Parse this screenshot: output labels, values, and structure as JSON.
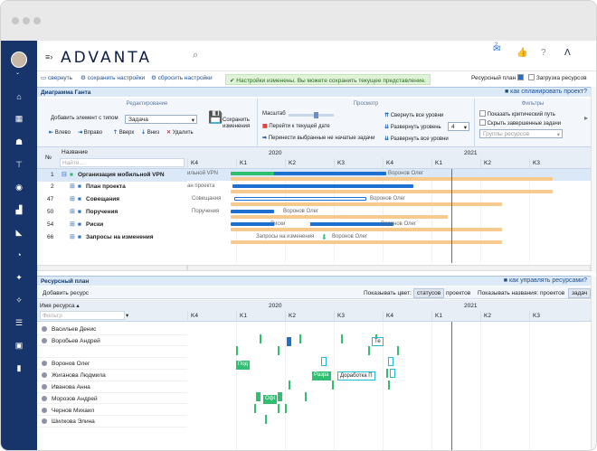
{
  "app": {
    "logo": "ADVANTA",
    "logo_accent": "A",
    "notification_count": "2"
  },
  "actions": {
    "collapse": "свернуть",
    "save_settings": "сохранить настройки",
    "reset_settings": "сбросить настройки",
    "notice": "Настройки изменены. Вы можете сохранить текущее представление.",
    "resource_plan": "Ресурсный план",
    "resource_load": "Загрузка ресурсов"
  },
  "gantt": {
    "title": "Диаграмма Ганта",
    "help_link": "как спланировать проект?",
    "ribbon": {
      "edit_title": "Редактирование",
      "add_label": "Добавить элемент с типом",
      "type_value": "Задача",
      "left": "Влево",
      "right": "Вправо",
      "up": "Вверх",
      "down": "Вниз",
      "delete": "Удалить",
      "save_changes_1": "Сохранить",
      "save_changes_2": "изменения",
      "view_title": "Просмотр",
      "scale": "Масштаб",
      "goto_date": "Перейти к текущей дате",
      "move_unstarted": "Перенести выбранные не начатые задачи",
      "collapse_all": "Свернуть все уровни",
      "expand_level": "Развернуть уровень",
      "level_value": "4",
      "expand_all": "Развернуть все уровни",
      "filters_title": "Фильтры",
      "critical_path": "Показать критический путь",
      "hide_done": "Скрыть завершенные задачи",
      "resource_groups": "Группы ресурсов"
    },
    "col_num": "№",
    "col_name": "Название",
    "name_filter": "Найти...",
    "rows": [
      {
        "num": "1",
        "name": "Организация мобильной VPN",
        "level": "0"
      },
      {
        "num": "2",
        "name": "План проекта",
        "level": "1"
      },
      {
        "num": "47",
        "name": "Совещания",
        "level": "1"
      },
      {
        "num": "50",
        "name": "Поручения",
        "level": "1"
      },
      {
        "num": "54",
        "name": "Риски",
        "level": "1"
      },
      {
        "num": "66",
        "name": "Запросы на изменения",
        "level": "1"
      }
    ],
    "years": [
      "2020",
      "2021"
    ],
    "quarters": [
      "K4",
      "K1",
      "K2",
      "K3",
      "K4",
      "K1",
      "K2",
      "K3"
    ],
    "bar_labels": [
      "ильной VPN",
      "Воронов Олег",
      "ан проекта",
      "Совещания",
      "Воронов Олег",
      "Поручения",
      "Воронов Олег",
      "Риски",
      "Воронов Олег",
      "Запросы на изменения",
      "Воронов Олег"
    ]
  },
  "resources": {
    "title": "Ресурсный план",
    "help_link": "как управлять ресурсами?",
    "add": "Добавить ресурс",
    "show_color": "Показывать цвет:",
    "by_status": "статусов",
    "by_project": "проектов",
    "show_names": "Показывать названия:",
    "names_projects": "проектов",
    "names_tasks": "задач",
    "col_name": "Имя ресурса",
    "filter_placeholder": "Фильтр",
    "people": [
      "Васильев Денис",
      "Воробьев Андрей",
      "",
      "Воронов Олег",
      "Жиганова Людмила",
      "Иванова Анна",
      "Морозов Андрей",
      "Чернов Михаил",
      "Шилкова Элина"
    ],
    "boxes": [
      "Те",
      "Под",
      "Разра",
      "Доработка П",
      "Офі"
    ]
  },
  "colors": {
    "sidebar": "#17356b",
    "accent": "#1fa1e0",
    "progress_green": "#2fbf71",
    "plan_blue": "#1d6fd1",
    "baseline": "#f6c98f",
    "today": "#e23b3b"
  }
}
